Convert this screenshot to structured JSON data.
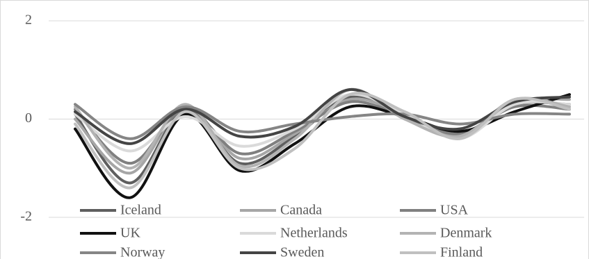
{
  "chart_data": {
    "type": "line",
    "smooth": true,
    "legend": "bottom",
    "grid": true,
    "categories": [
      null,
      null,
      null,
      null,
      null,
      null,
      null,
      null,
      null,
      null
    ],
    "ylim": [
      -2,
      2
    ],
    "yticks": [
      -2,
      0,
      2
    ],
    "series": [
      {
        "name": "Iceland",
        "color": "#5f5f5f",
        "values": [
          0.1,
          -1.3,
          0.2,
          -0.9,
          -0.35,
          0.45,
          0.05,
          -0.3,
          0.3,
          0.3
        ]
      },
      {
        "name": "Canada",
        "color": "#a6a6a6",
        "values": [
          0.0,
          -1.1,
          0.25,
          -0.8,
          -0.3,
          0.4,
          0.1,
          -0.35,
          0.35,
          0.4
        ]
      },
      {
        "name": "USA",
        "color": "#808080",
        "values": [
          0.2,
          -0.9,
          0.2,
          -0.7,
          -0.25,
          0.35,
          0.05,
          -0.3,
          0.25,
          0.2
        ]
      },
      {
        "name": "UK",
        "color": "#111111",
        "values": [
          -0.2,
          -1.6,
          0.1,
          -1.05,
          -0.5,
          0.25,
          0.05,
          -0.25,
          0.15,
          0.5
        ]
      },
      {
        "name": "Netherlands",
        "color": "#dadada",
        "values": [
          0.1,
          -0.65,
          0.05,
          -0.55,
          -0.2,
          0.5,
          0.1,
          -0.4,
          0.3,
          0.3
        ]
      },
      {
        "name": "Denmark",
        "color": "#b3b3b3",
        "values": [
          0.25,
          -1.0,
          0.3,
          -0.95,
          -0.4,
          0.6,
          0.0,
          -0.35,
          0.4,
          0.25
        ]
      },
      {
        "name": "Norway",
        "color": "#858585",
        "values": [
          0.3,
          -0.4,
          0.25,
          -0.25,
          -0.1,
          0.05,
          0.1,
          -0.1,
          0.1,
          0.1
        ]
      },
      {
        "name": "Sweden",
        "color": "#444444",
        "values": [
          0.15,
          -0.5,
          0.2,
          -0.35,
          -0.15,
          0.6,
          0.05,
          -0.2,
          0.35,
          0.45
        ]
      },
      {
        "name": "Finland",
        "color": "#c0c0c0",
        "values": [
          -0.1,
          -1.4,
          0.15,
          -1.0,
          -0.6,
          0.5,
          0.15,
          -0.4,
          0.4,
          0.2
        ]
      }
    ]
  }
}
